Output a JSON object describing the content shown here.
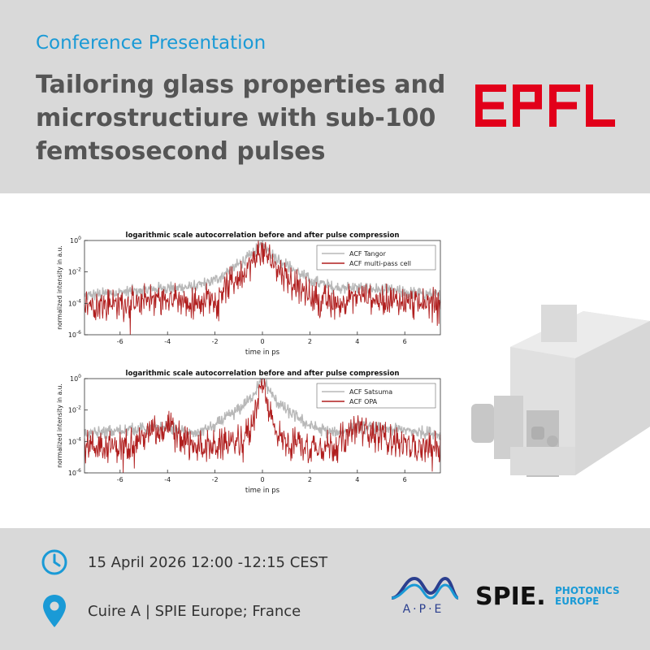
{
  "header": {
    "kicker": "Conference Presentation",
    "title_lines": [
      "Tailoring glass properties and",
      "microstructiure with sub-100",
      "femtsosecond pulses"
    ],
    "logo_text": "EPFL"
  },
  "chart_data": [
    {
      "type": "line",
      "title": "logarithmic scale autocorrelation before and after pulse compression",
      "xlabel": "time in ps",
      "ylabel": "normalized intensity in a.u.",
      "xlim": [
        -7.5,
        7.5
      ],
      "ylim": [
        1e-06,
        1
      ],
      "yscale": "log",
      "x_ticks": [
        "-6",
        "-4",
        "-2",
        "0",
        "2",
        "4",
        "6"
      ],
      "legend_position": "top-right",
      "series": [
        {
          "name": "ACF Tangor",
          "color": "#b8b8b8",
          "x": [
            -7.5,
            -6,
            -4,
            -3,
            -2,
            -1,
            -0.5,
            0,
            0.5,
            1,
            2,
            3,
            4,
            6,
            7.5
          ],
          "y": [
            0.0003,
            0.0005,
            0.001,
            0.001,
            0.003,
            0.03,
            0.1,
            0.6,
            0.1,
            0.03,
            0.003,
            0.001,
            0.001,
            0.0005,
            0.0003
          ]
        },
        {
          "name": "ACF multi-pass cell",
          "color": "#b01e1e",
          "x": [
            -7.5,
            -6,
            -4,
            -3,
            -2,
            -1,
            -0.5,
            0,
            0.5,
            1,
            2,
            3,
            4,
            6,
            7.5
          ],
          "y": [
            0.0001,
            0.0001,
            0.0003,
            0.0001,
            0.0003,
            0.005,
            0.03,
            0.3,
            0.03,
            0.005,
            0.0003,
            0.0001,
            0.0003,
            0.0001,
            0.0001
          ]
        }
      ]
    },
    {
      "type": "line",
      "title": "logarithmic scale autocorrelation before and after pulse compression",
      "xlabel": "time in ps",
      "ylabel": "normalized intensity in a.u.",
      "xlim": [
        -7.5,
        7.5
      ],
      "ylim": [
        1e-06,
        1
      ],
      "yscale": "log",
      "x_ticks": [
        "-6",
        "-4",
        "-2",
        "0",
        "2",
        "4",
        "6"
      ],
      "legend_position": "top-right",
      "series": [
        {
          "name": "ACF Satsuma",
          "color": "#b8b8b8",
          "x": [
            -7.5,
            -6,
            -4,
            -3,
            -2,
            -1,
            -0.5,
            0,
            0.5,
            1,
            2,
            3,
            4,
            6,
            7.5
          ],
          "y": [
            0.0003,
            0.0005,
            0.0008,
            0.0003,
            0.001,
            0.01,
            0.05,
            1,
            0.05,
            0.01,
            0.001,
            0.0003,
            0.0008,
            0.0005,
            0.0003
          ]
        },
        {
          "name": "ACF OPA",
          "color": "#b01e1e",
          "x": [
            -7.5,
            -6,
            -4,
            -3,
            -2,
            -1,
            -0.5,
            0,
            0.5,
            1,
            2,
            3,
            4,
            6,
            7.5
          ],
          "y": [
            5e-05,
            5e-05,
            0.001,
            5e-05,
            5e-05,
            0.0001,
            0.0005,
            1,
            0.0005,
            0.0001,
            5e-05,
            5e-05,
            0.001,
            5e-05,
            5e-05
          ]
        }
      ]
    }
  ],
  "footer": {
    "date_text": "15 April 2026 12:00 -12:15 CEST",
    "location_text": "Cuire A | SPIE Europe; France",
    "date_icon": "clock-icon",
    "location_icon": "map-pin-icon",
    "ape_logo_text": "A·P·E",
    "spie_logo_text": "SPIE.",
    "spie_logo_sub": [
      "PHOTONICS",
      "EUROPE"
    ]
  },
  "colors": {
    "accent_blue": "#1a9ad6",
    "epfl_red": "#e2001a",
    "panel_gray": "#d9d9d9",
    "title_gray": "#555555"
  }
}
